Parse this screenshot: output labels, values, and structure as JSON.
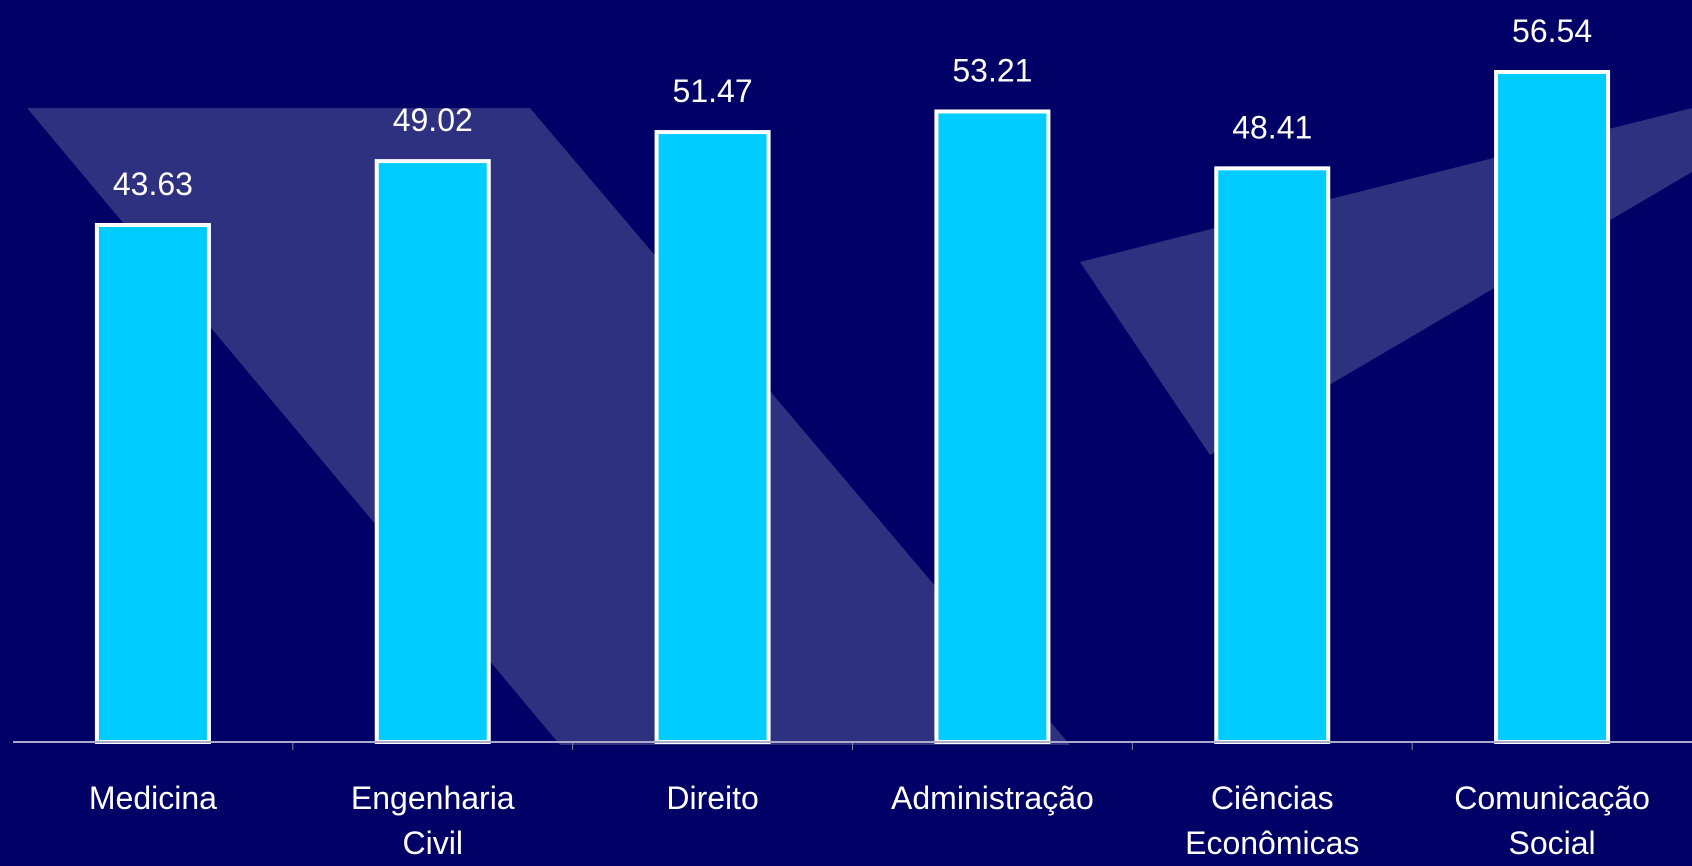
{
  "chart_data": {
    "type": "bar",
    "categories": [
      "Medicina",
      "Engenharia Civil",
      "Direito",
      "Administração",
      "Ciências Econômicas",
      "Comunicação Social"
    ],
    "values": [
      43.63,
      49.02,
      51.47,
      53.21,
      48.41,
      56.54
    ],
    "color": "#00ccff",
    "ylim": [
      0,
      60
    ]
  }
}
